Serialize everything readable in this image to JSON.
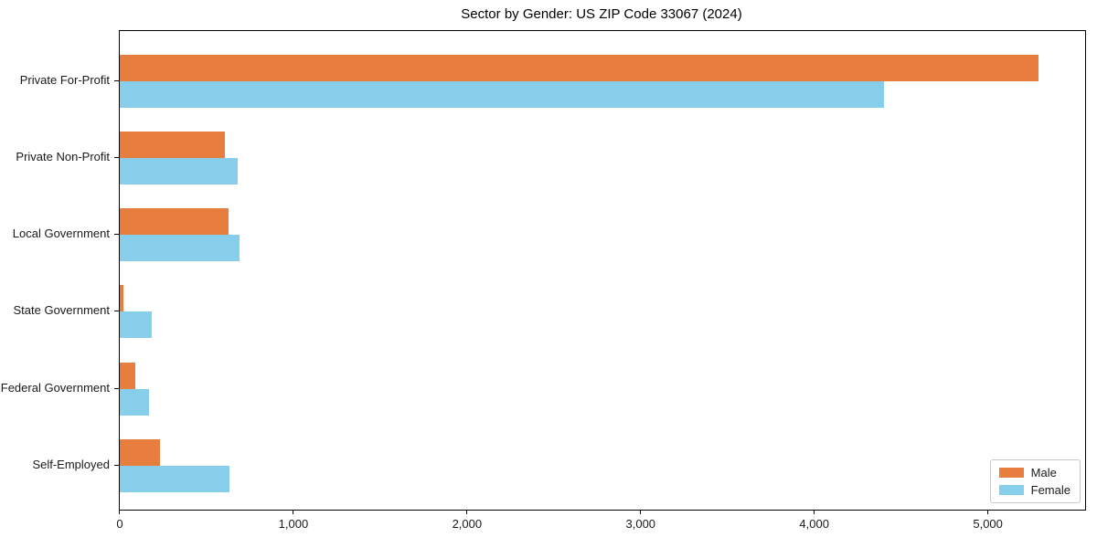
{
  "title": "Sector by Gender: US ZIP Code 33067 (2024)",
  "chart_data": {
    "type": "bar",
    "orientation": "horizontal",
    "title": "Sector by Gender: US ZIP Code 33067 (2024)",
    "xlabel": "",
    "ylabel": "",
    "categories": [
      "Private For-Profit",
      "Private Non-Profit",
      "Local Government",
      "State Government",
      "Federal Government",
      "Self-Employed"
    ],
    "series": [
      {
        "name": "Male",
        "color": "#e87e3e",
        "values": [
          5290,
          605,
          625,
          20,
          90,
          230
        ]
      },
      {
        "name": "Female",
        "color": "#87ceeb",
        "values": [
          4400,
          680,
          690,
          185,
          170,
          630
        ]
      }
    ],
    "xlim": [
      0,
      5560
    ],
    "x_ticks": [
      0,
      1000,
      2000,
      3000,
      4000,
      5000
    ],
    "x_tick_labels": [
      "0",
      "1,000",
      "2,000",
      "3,000",
      "4,000",
      "5,000"
    ],
    "grid": false,
    "legend_position": "lower right",
    "axis_color": "#000000"
  }
}
